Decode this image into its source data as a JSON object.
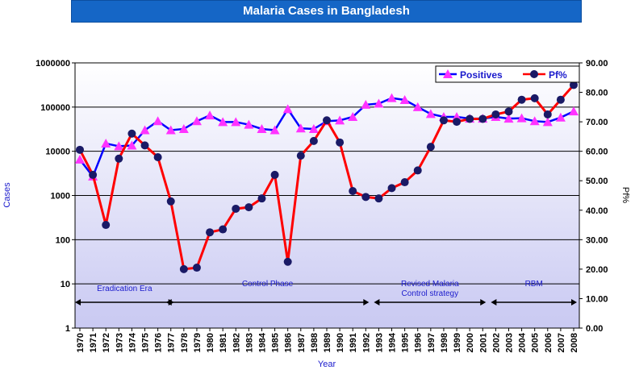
{
  "chart_data": {
    "type": "line",
    "title": "Malaria Cases in Bangladesh",
    "xlabel": "Year",
    "ylabel": "Cases",
    "y2label": "Pf%",
    "y_scale": "log",
    "ylim": [
      1,
      1000000
    ],
    "y2lim": [
      0,
      90
    ],
    "y_ticks": [
      "1",
      "10",
      "100",
      "1000",
      "10000",
      "100000",
      "1000000"
    ],
    "y2_ticks": [
      "0.00",
      "10.00",
      "20.00",
      "30.00",
      "40.00",
      "50.00",
      "60.00",
      "70.00",
      "80.00",
      "90.00"
    ],
    "categories": [
      "1970",
      "1971",
      "1972",
      "1973",
      "1974",
      "1975",
      "1976",
      "1977",
      "1978",
      "1979",
      "1980",
      "1981",
      "1982",
      "1983",
      "1984",
      "1985",
      "1986",
      "1987",
      "1988",
      "1989",
      "1990",
      "1991",
      "1992",
      "1993",
      "1994",
      "1995",
      "1996",
      "1997",
      "1998",
      "1999",
      "2000",
      "2001",
      "2002",
      "2003",
      "2004",
      "2005",
      "2006",
      "2007",
      "2008"
    ],
    "series": [
      {
        "name": "Positives",
        "axis": "left",
        "color": "#0000ff",
        "marker_color": "#ff33ff",
        "values": [
          6500,
          2700,
          15000,
          13000,
          13500,
          30000,
          48000,
          30000,
          32000,
          48000,
          65000,
          46000,
          46000,
          40000,
          32000,
          30000,
          90000,
          33000,
          32000,
          48000,
          50000,
          60000,
          113000,
          120000,
          160000,
          145000,
          100000,
          70000,
          60000,
          60000,
          55000,
          55000,
          60000,
          55000,
          56000,
          48000,
          46000,
          58000,
          80000
        ]
      },
      {
        "name": "Pf%",
        "axis": "right",
        "color": "#ff0000",
        "marker_color": "#1a1a66",
        "values": [
          60.5,
          52,
          35,
          57.5,
          66,
          62,
          58,
          43,
          20,
          20.5,
          32.5,
          33.5,
          40.5,
          41,
          44,
          52,
          22.5,
          58.5,
          63.5,
          70.5,
          63,
          46.5,
          44.5,
          44,
          47.5,
          49.5,
          53.5,
          61.5,
          70.5,
          70,
          71,
          71,
          72.5,
          73.5,
          77.5,
          78,
          72.5,
          77.5,
          82.5
        ]
      }
    ],
    "annotations": [
      {
        "text": "Eradication Era",
        "from": "1970",
        "to": "1977"
      },
      {
        "text": "Control Phase",
        "from": "1977",
        "to": "1992"
      },
      {
        "text": "Revised  Malaria",
        "from": "1993",
        "to": "2001"
      },
      {
        "text": "Control strategy",
        "from": "1993",
        "to": "2001"
      },
      {
        "text": "RBM",
        "from": "2002",
        "to": "2008"
      }
    ],
    "legend": {
      "position": "top-right",
      "entries": [
        "Positives",
        "Pf%"
      ]
    }
  }
}
